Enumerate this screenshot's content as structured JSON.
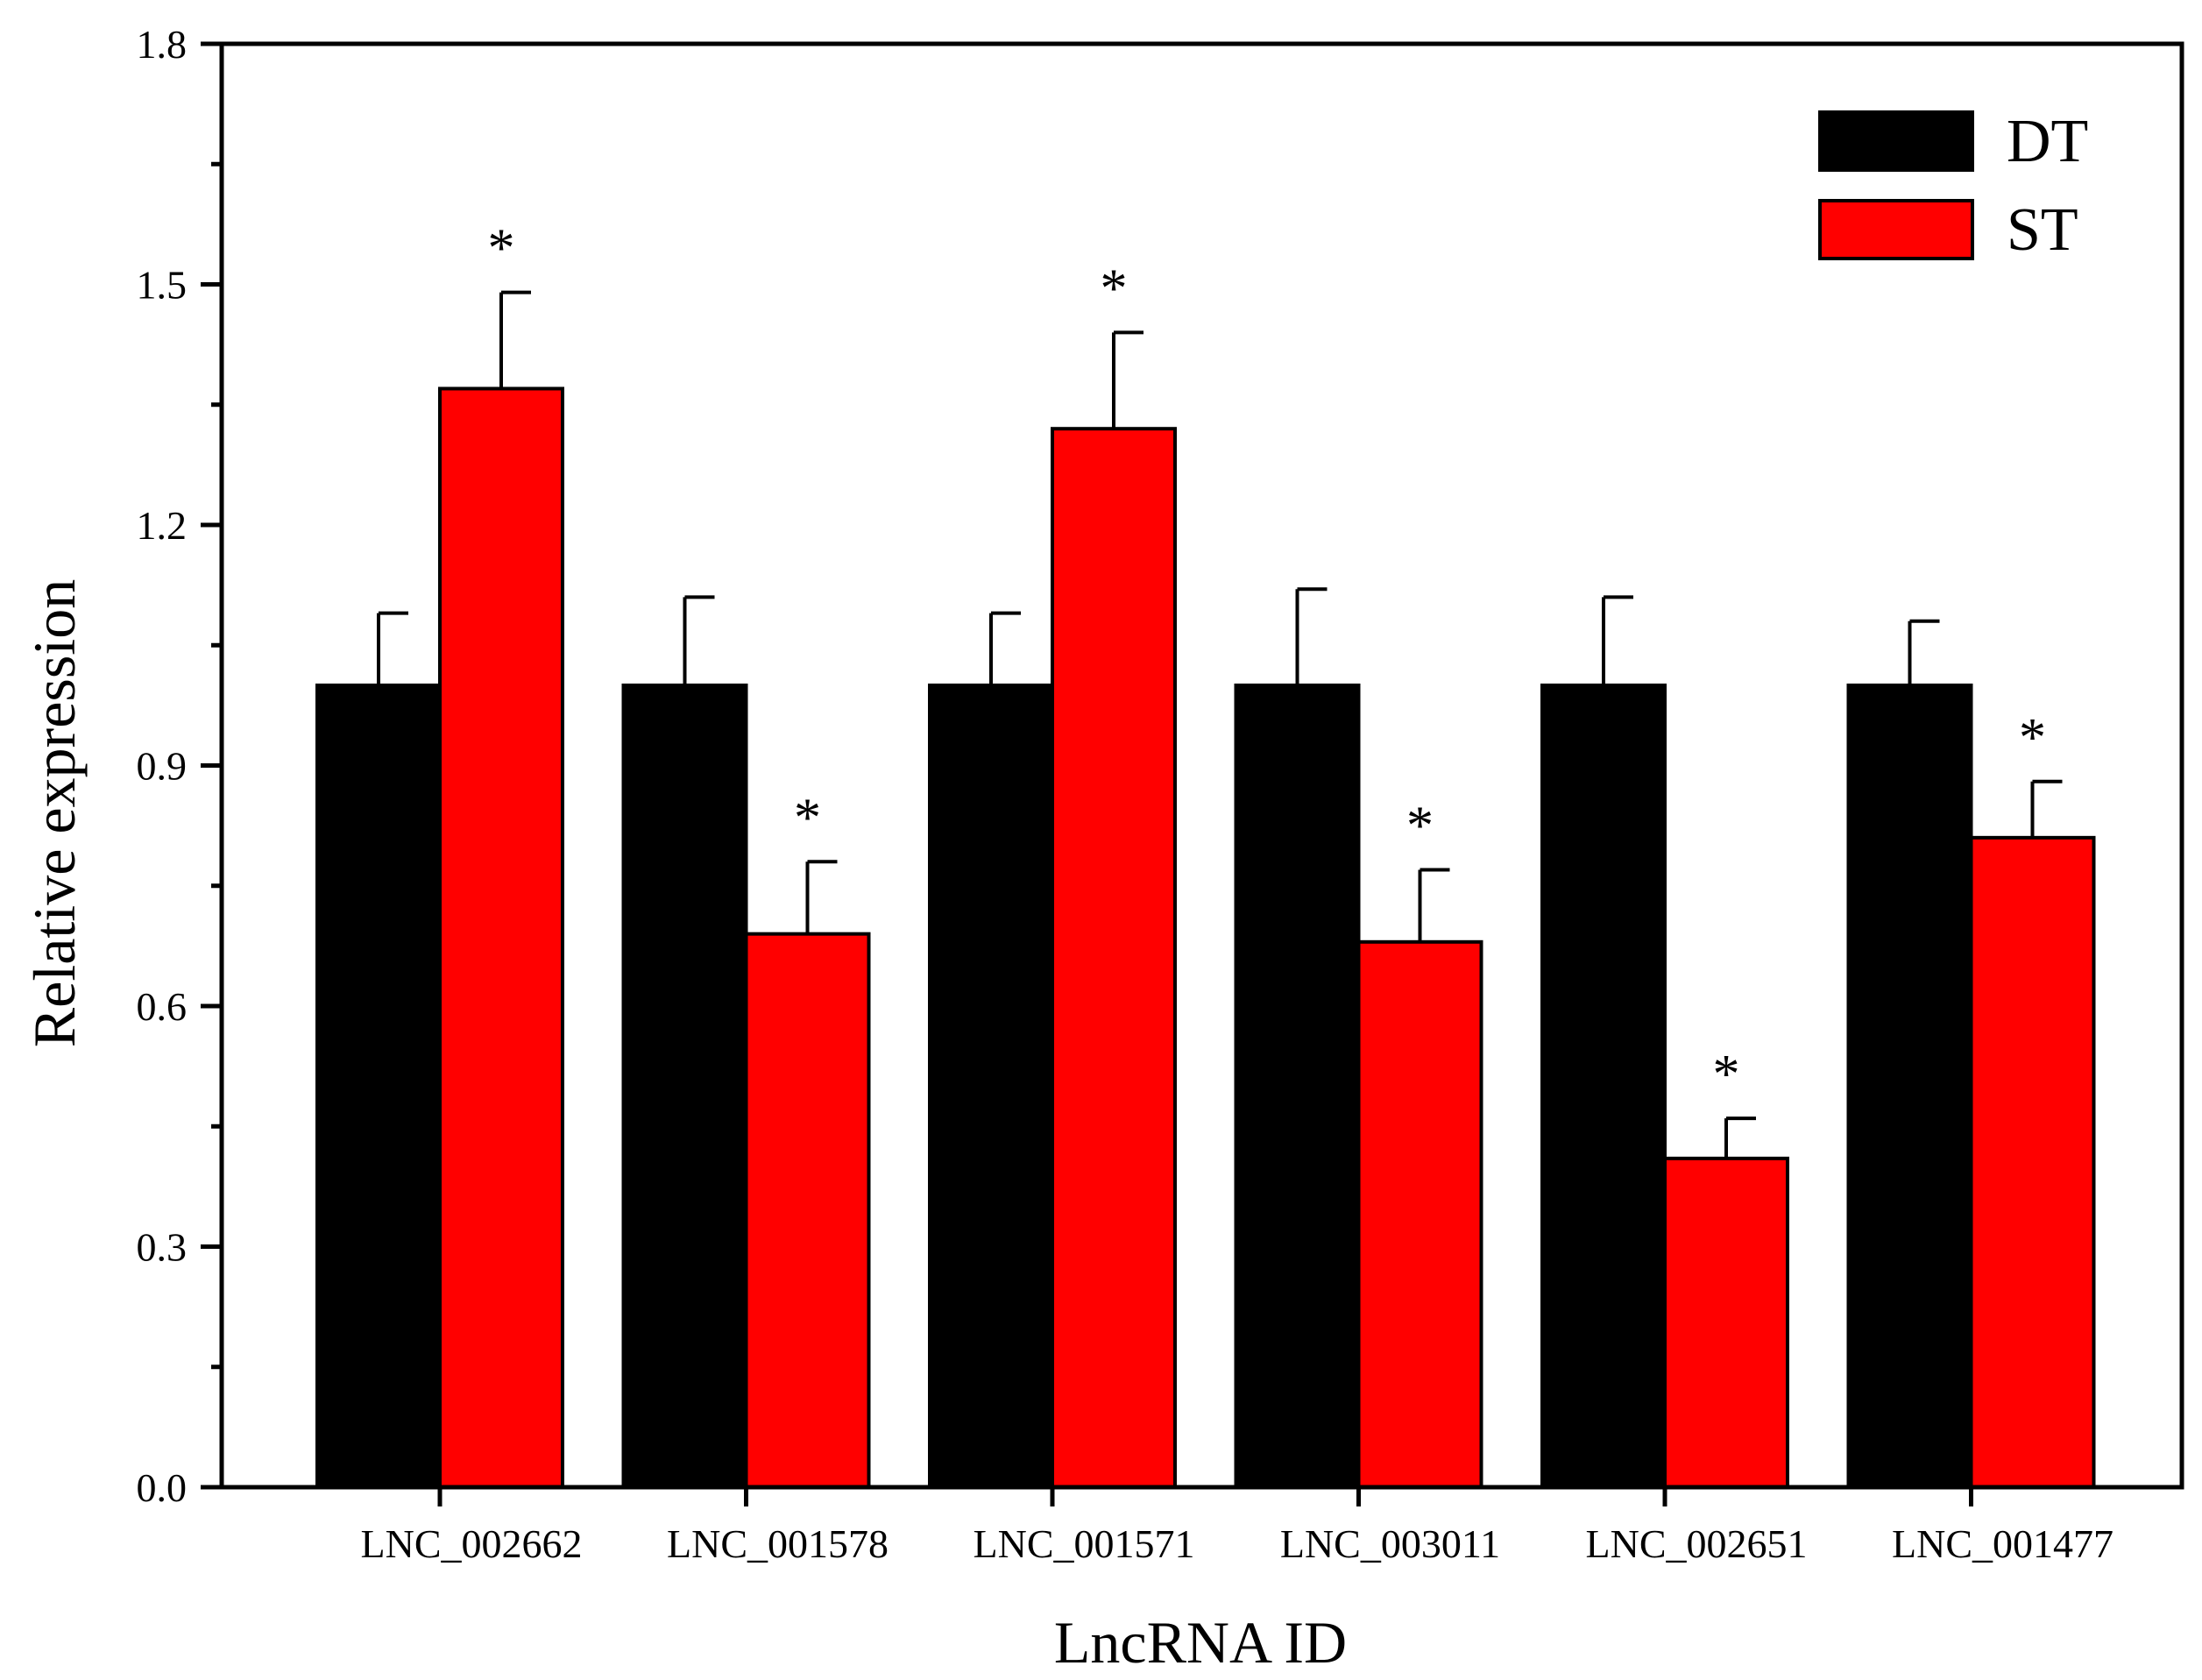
{
  "chart_data": {
    "type": "bar",
    "title": "",
    "xlabel": "LncRNA ID",
    "ylabel": "Relative expression",
    "ylim": [
      0,
      1.8
    ],
    "yticks": [
      "0.0",
      "0.3",
      "0.6",
      "0.9",
      "1.2",
      "1.5",
      "1.8"
    ],
    "categories": [
      "LNC_002662",
      "LNC_001578",
      "LNC_001571",
      "LNC_003011",
      "LNC_002651",
      "LNC_001477"
    ],
    "series": [
      {
        "name": "DT",
        "color": "#000000",
        "values": [
          1.0,
          1.0,
          1.0,
          1.0,
          1.0,
          1.0
        ],
        "errors": [
          0.09,
          0.11,
          0.09,
          0.12,
          0.11,
          0.08
        ],
        "significance": [
          "",
          "",
          "",
          "",
          "",
          ""
        ]
      },
      {
        "name": "ST",
        "color": "#ff0000",
        "values": [
          1.37,
          0.69,
          1.32,
          0.68,
          0.41,
          0.81
        ],
        "errors": [
          0.12,
          0.09,
          0.12,
          0.09,
          0.05,
          0.07
        ],
        "significance": [
          "*",
          "*",
          "*",
          "*",
          "*",
          "*"
        ]
      }
    ],
    "legend_position": "top-right",
    "grid": false
  }
}
